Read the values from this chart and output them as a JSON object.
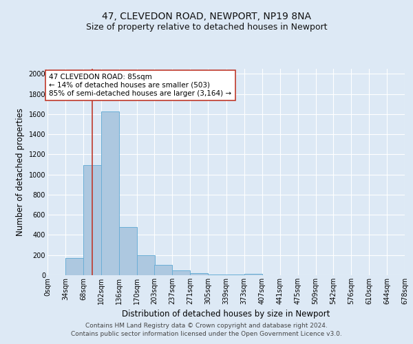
{
  "title_line1": "47, CLEVEDON ROAD, NEWPORT, NP19 8NA",
  "title_line2": "Size of property relative to detached houses in Newport",
  "xlabel": "Distribution of detached houses by size in Newport",
  "ylabel": "Number of detached properties",
  "footer_line1": "Contains HM Land Registry data © Crown copyright and database right 2024.",
  "footer_line2": "Contains public sector information licensed under the Open Government Licence v3.0.",
  "bin_edges": [
    0,
    34,
    68,
    102,
    136,
    170,
    203,
    237,
    271,
    305,
    339,
    373,
    407,
    441,
    475,
    509,
    542,
    576,
    610,
    644,
    678
  ],
  "bin_labels": [
    "0sqm",
    "34sqm",
    "68sqm",
    "102sqm",
    "136sqm",
    "170sqm",
    "203sqm",
    "237sqm",
    "271sqm",
    "305sqm",
    "339sqm",
    "373sqm",
    "407sqm",
    "441sqm",
    "475sqm",
    "509sqm",
    "542sqm",
    "576sqm",
    "610sqm",
    "644sqm",
    "678sqm"
  ],
  "bar_heights": [
    0,
    170,
    1090,
    1625,
    480,
    200,
    100,
    45,
    20,
    5,
    5,
    15,
    0,
    0,
    0,
    0,
    0,
    0,
    0,
    0
  ],
  "bar_color": "#adc8e0",
  "bar_edgecolor": "#6aaed6",
  "subject_value": 85,
  "subject_line_color": "#c0392b",
  "annotation_text": "47 CLEVEDON ROAD: 85sqm\n← 14% of detached houses are smaller (503)\n85% of semi-detached houses are larger (3,164) →",
  "annotation_box_edgecolor": "#c0392b",
  "annotation_box_facecolor": "#ffffff",
  "ylim": [
    0,
    2050
  ],
  "yticks": [
    0,
    200,
    400,
    600,
    800,
    1000,
    1200,
    1400,
    1600,
    1800,
    2000
  ],
  "bg_color": "#dde9f5",
  "plot_bg_color": "#dde9f5",
  "grid_color": "#ffffff",
  "title_fontsize": 10,
  "subtitle_fontsize": 9,
  "axis_label_fontsize": 8.5,
  "tick_fontsize": 7,
  "annotation_fontsize": 7.5,
  "footer_fontsize": 6.5
}
